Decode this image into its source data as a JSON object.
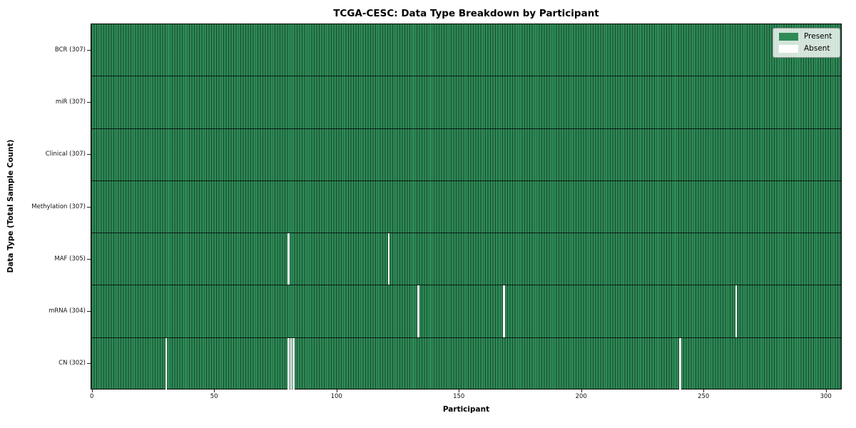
{
  "title": "TCGA-CESC: Data Type Breakdown by Participant",
  "axes": {
    "x_label": "Participant",
    "y_label": "Data Type (Total Sample Count)",
    "x_ticks": [
      0,
      50,
      100,
      150,
      200,
      250,
      300
    ]
  },
  "legend": {
    "items": [
      {
        "label": "Present",
        "color": "#2e8b57"
      },
      {
        "label": "Absent",
        "color": "#ffffff"
      }
    ]
  },
  "colors": {
    "present": "#2e8b57",
    "absent": "#ffffff",
    "bar_edge": "#1b4d32"
  },
  "chart_data": {
    "type": "heatmap",
    "title": "TCGA-CESC: Data Type Breakdown by Participant",
    "xlabel": "Participant",
    "ylabel": "Data Type (Total Sample Count)",
    "n_participants": 307,
    "x_range": [
      0,
      306
    ],
    "x_ticks": [
      0,
      50,
      100,
      150,
      200,
      250,
      300
    ],
    "legend": [
      "Present",
      "Absent"
    ],
    "legend_position": "upper right",
    "grid": false,
    "rows": [
      {
        "label": "BCR (307)",
        "name": "BCR",
        "total": 307,
        "absent_participants": []
      },
      {
        "label": "miR (307)",
        "name": "miR",
        "total": 307,
        "absent_participants": []
      },
      {
        "label": "Clinical (307)",
        "name": "Clinical",
        "total": 307,
        "absent_participants": []
      },
      {
        "label": "Methylation (307)",
        "name": "Methylation",
        "total": 307,
        "absent_participants": []
      },
      {
        "label": "MAF (305)",
        "name": "MAF",
        "total": 305,
        "absent_participants": [
          80,
          121
        ]
      },
      {
        "label": "mRNA (304)",
        "name": "mRNA",
        "total": 304,
        "absent_participants": [
          133,
          168,
          263
        ]
      },
      {
        "label": "CN (302)",
        "name": "CN",
        "total": 302,
        "absent_participants": [
          30,
          80,
          81,
          82,
          240
        ]
      }
    ]
  }
}
